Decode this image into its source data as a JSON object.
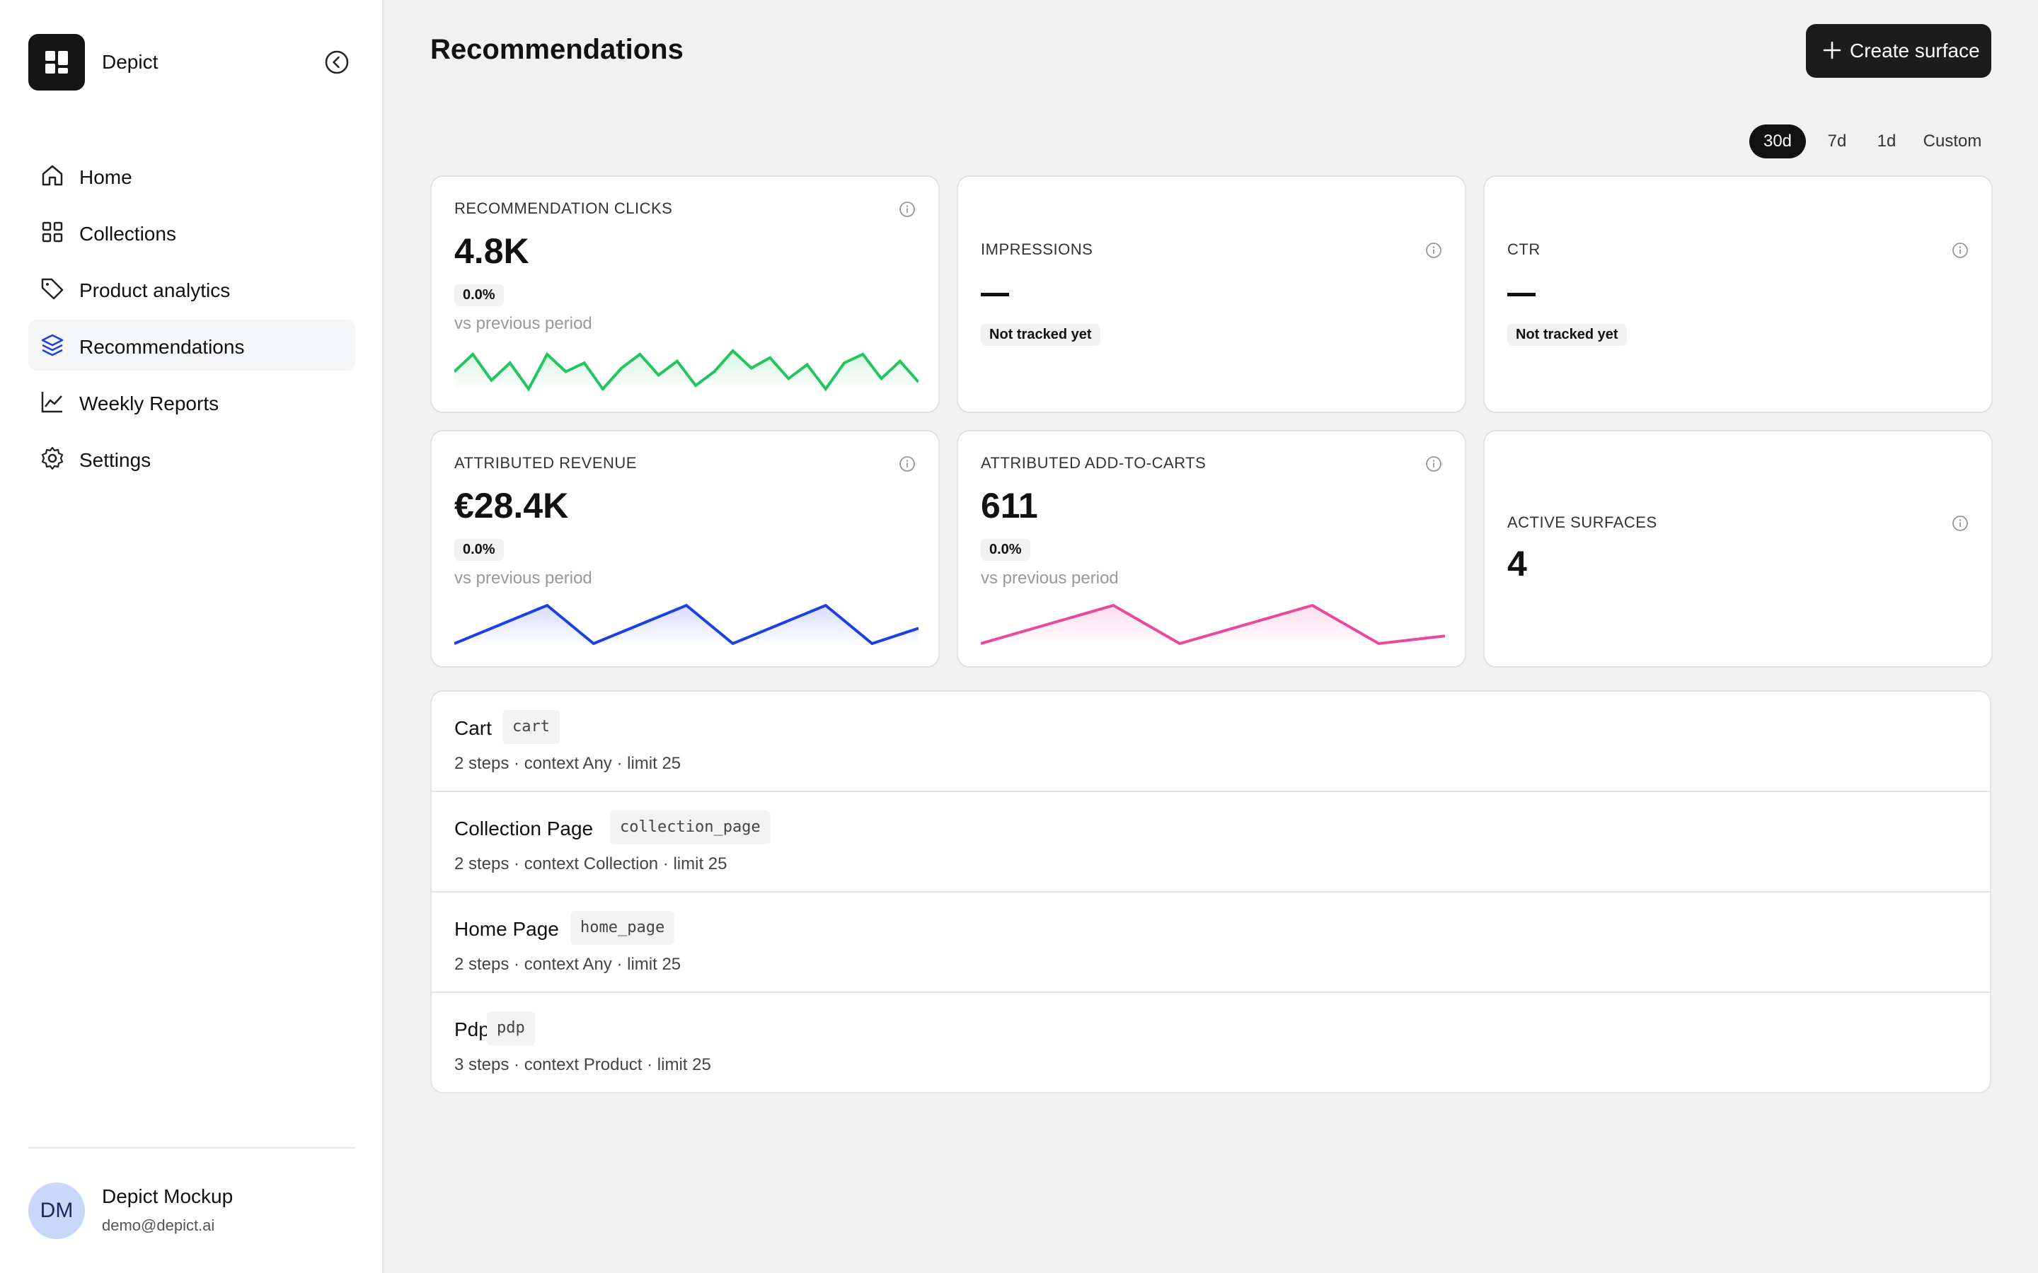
{
  "brand": {
    "name": "Depict"
  },
  "nav": [
    {
      "label": "Home",
      "icon": "home-icon",
      "active": false
    },
    {
      "label": "Collections",
      "icon": "grid-icon",
      "active": false
    },
    {
      "label": "Product analytics",
      "icon": "tag-icon",
      "active": false
    },
    {
      "label": "Recommendations",
      "icon": "layers-icon",
      "active": true
    },
    {
      "label": "Weekly Reports",
      "icon": "chart-line-icon",
      "active": false
    },
    {
      "label": "Settings",
      "icon": "gear-icon",
      "active": false
    }
  ],
  "user": {
    "initials": "DM",
    "name": "Depict Mockup",
    "email": "demo@depict.ai"
  },
  "header": {
    "title": "Recommendations",
    "create_label": "Create surface"
  },
  "range": {
    "options": [
      "30d",
      "7d",
      "1d",
      "Custom"
    ],
    "selected": "30d"
  },
  "metrics": {
    "clicks": {
      "label": "RECOMMENDATION CLICKS",
      "value": "4.8K",
      "change": "0.0%",
      "vs": "vs previous period",
      "color": "#22c55e"
    },
    "impressions": {
      "label": "IMPRESSIONS",
      "value": "—",
      "status": "Not tracked yet"
    },
    "ctr": {
      "label": "CTR",
      "value": "—",
      "status": "Not tracked yet"
    },
    "revenue": {
      "label": "ATTRIBUTED REVENUE",
      "value": "€28.4K",
      "change": "0.0%",
      "vs": "vs previous period",
      "color": "#1d3fe6"
    },
    "add_to_carts": {
      "label": "ATTRIBUTED ADD-TO-CARTS",
      "value": "611",
      "change": "0.0%",
      "vs": "vs previous period",
      "color": "#ec4899"
    },
    "active_surfaces": {
      "label": "ACTIVE SURFACES",
      "value": "4"
    }
  },
  "sparklines": {
    "clicks": [
      2,
      3,
      1.5,
      2.5,
      1,
      3,
      2,
      2.5,
      1,
      2.2,
      3,
      1.8,
      2.6,
      1.2,
      2,
      3.2,
      2.2,
      2.8,
      1.6,
      2.4,
      1,
      2.5,
      3,
      1.6,
      2.6,
      1.4
    ],
    "revenue": [
      1,
      2,
      3,
      1,
      2,
      3,
      1,
      2,
      3,
      1,
      1.8
    ],
    "add_to_carts": [
      1,
      2,
      3,
      1,
      2,
      3,
      1,
      1.4
    ]
  },
  "surfaces": [
    {
      "name": "Cart",
      "code": "cart",
      "meta": "2 steps · context Any · limit 25"
    },
    {
      "name": "Collection Page",
      "code": "collection_page",
      "meta": "2 steps · context Collection · limit 25"
    },
    {
      "name": "Home Page",
      "code": "home_page",
      "meta": "2 steps · context Any · limit 25"
    },
    {
      "name": "Pdp",
      "code": "pdp",
      "meta": "3 steps · context Product · limit 25"
    }
  ]
}
